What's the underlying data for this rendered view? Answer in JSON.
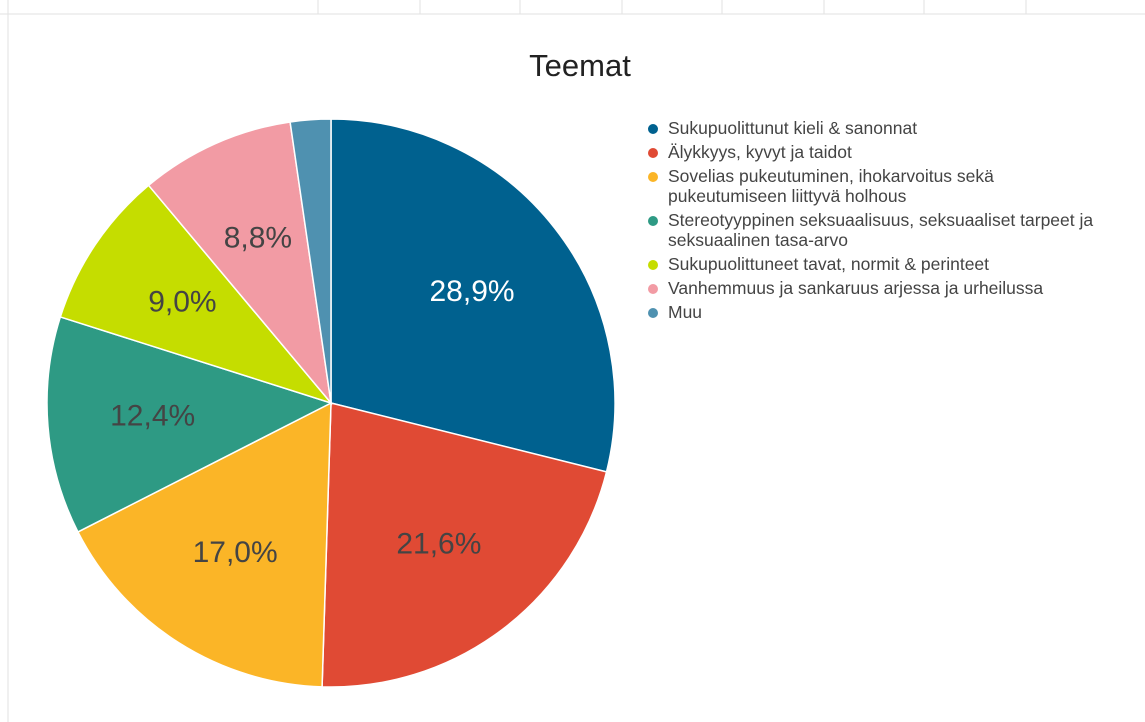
{
  "chart_data": {
    "type": "pie",
    "title": "Teemat",
    "categories": [
      "Sukupuolittunut kieli & sanonnat",
      "Älykkyys, kyvyt ja taidot",
      "Sovelias pukeutuminen, ihokarvoitus sekä pukeutumiseen liittyvä holhous",
      "Stereotyyppinen seksuaalisuus, seksuaaliset tarpeet ja seksuaalinen tasa-arvo",
      "Sukupuolittuneet tavat, normit & perinteet",
      "Vanhemmuus ja sankaruus arjessa ja urheilussa",
      "Muu"
    ],
    "values": [
      28.9,
      21.6,
      17.0,
      12.4,
      9.0,
      8.8,
      2.3
    ],
    "value_labels": [
      "28,9%",
      "21,6%",
      "17,0%",
      "12,4%",
      "9,0%",
      "8,8%",
      null
    ],
    "colors": [
      "#00618f",
      "#e04a34",
      "#fbb527",
      "#2e9a84",
      "#c5dd00",
      "#f29ba4",
      "#4f91b0"
    ],
    "legend": "right"
  }
}
